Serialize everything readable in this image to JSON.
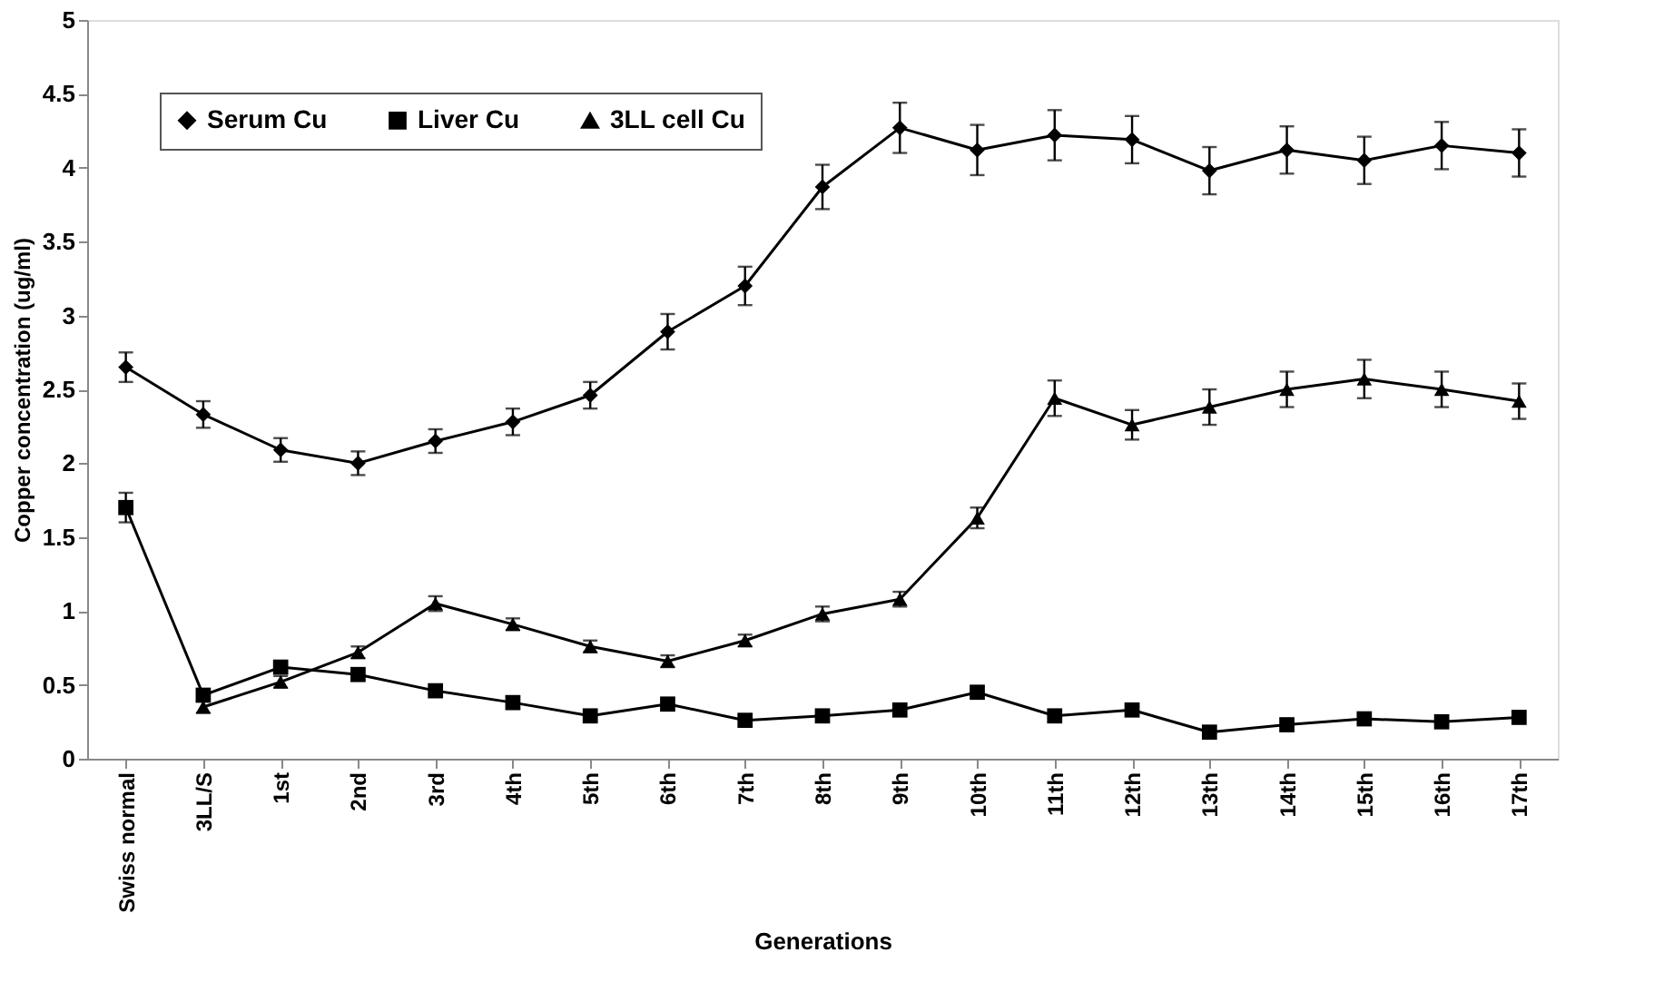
{
  "chart_data": {
    "type": "line",
    "xlabel": "Generations",
    "ylabel": "Copper concentration (ug/ml)",
    "categories": [
      "Swiss normal",
      "3LL/S",
      "1st",
      "2nd",
      "3rd",
      "4th",
      "5th",
      "6th",
      "7th",
      "8th",
      "9th",
      "10th",
      "11th",
      "12th",
      "13th",
      "14th",
      "15th",
      "16th",
      "17th"
    ],
    "series": [
      {
        "name": "Serum Cu",
        "color": "#000000",
        "marker": "diamond",
        "values": [
          2.65,
          2.33,
          2.09,
          2.0,
          2.15,
          2.28,
          2.46,
          2.89,
          3.2,
          3.87,
          4.27,
          4.12,
          4.22,
          4.19,
          3.98,
          4.12,
          4.05,
          4.15,
          4.1
        ],
        "errors": [
          0.1,
          0.09,
          0.08,
          0.08,
          0.08,
          0.09,
          0.09,
          0.12,
          0.13,
          0.15,
          0.17,
          0.17,
          0.17,
          0.16,
          0.16,
          0.16,
          0.16,
          0.16,
          0.16
        ]
      },
      {
        "name": "Liver Cu",
        "color": "#000000",
        "marker": "square",
        "values": [
          1.7,
          0.43,
          0.62,
          0.57,
          0.46,
          0.38,
          0.29,
          0.37,
          0.26,
          0.29,
          0.33,
          0.45,
          0.29,
          0.33,
          0.18,
          0.23,
          0.27,
          0.25,
          0.28
        ],
        "errors": [
          0.1,
          null,
          null,
          null,
          null,
          null,
          null,
          null,
          null,
          null,
          null,
          null,
          null,
          null,
          null,
          null,
          null,
          null,
          null
        ]
      },
      {
        "name": "3LL cell Cu",
        "color": "#000000",
        "marker": "triangle",
        "values": [
          null,
          0.35,
          0.52,
          0.72,
          1.05,
          0.91,
          0.76,
          0.66,
          0.8,
          0.98,
          1.08,
          1.63,
          2.44,
          2.26,
          2.38,
          2.5,
          2.57,
          2.5,
          2.42
        ],
        "errors": [
          null,
          0.04,
          0.04,
          0.04,
          0.05,
          0.04,
          0.04,
          0.04,
          0.04,
          0.05,
          0.05,
          0.07,
          0.12,
          0.1,
          0.12,
          0.12,
          0.13,
          0.12,
          0.12
        ]
      }
    ],
    "ylim": [
      0,
      5
    ],
    "yticks": [
      0,
      0.5,
      1,
      1.5,
      2,
      2.5,
      3,
      3.5,
      4,
      4.5,
      5
    ],
    "grid": false,
    "legend": "top left",
    "line_style": "solid"
  }
}
